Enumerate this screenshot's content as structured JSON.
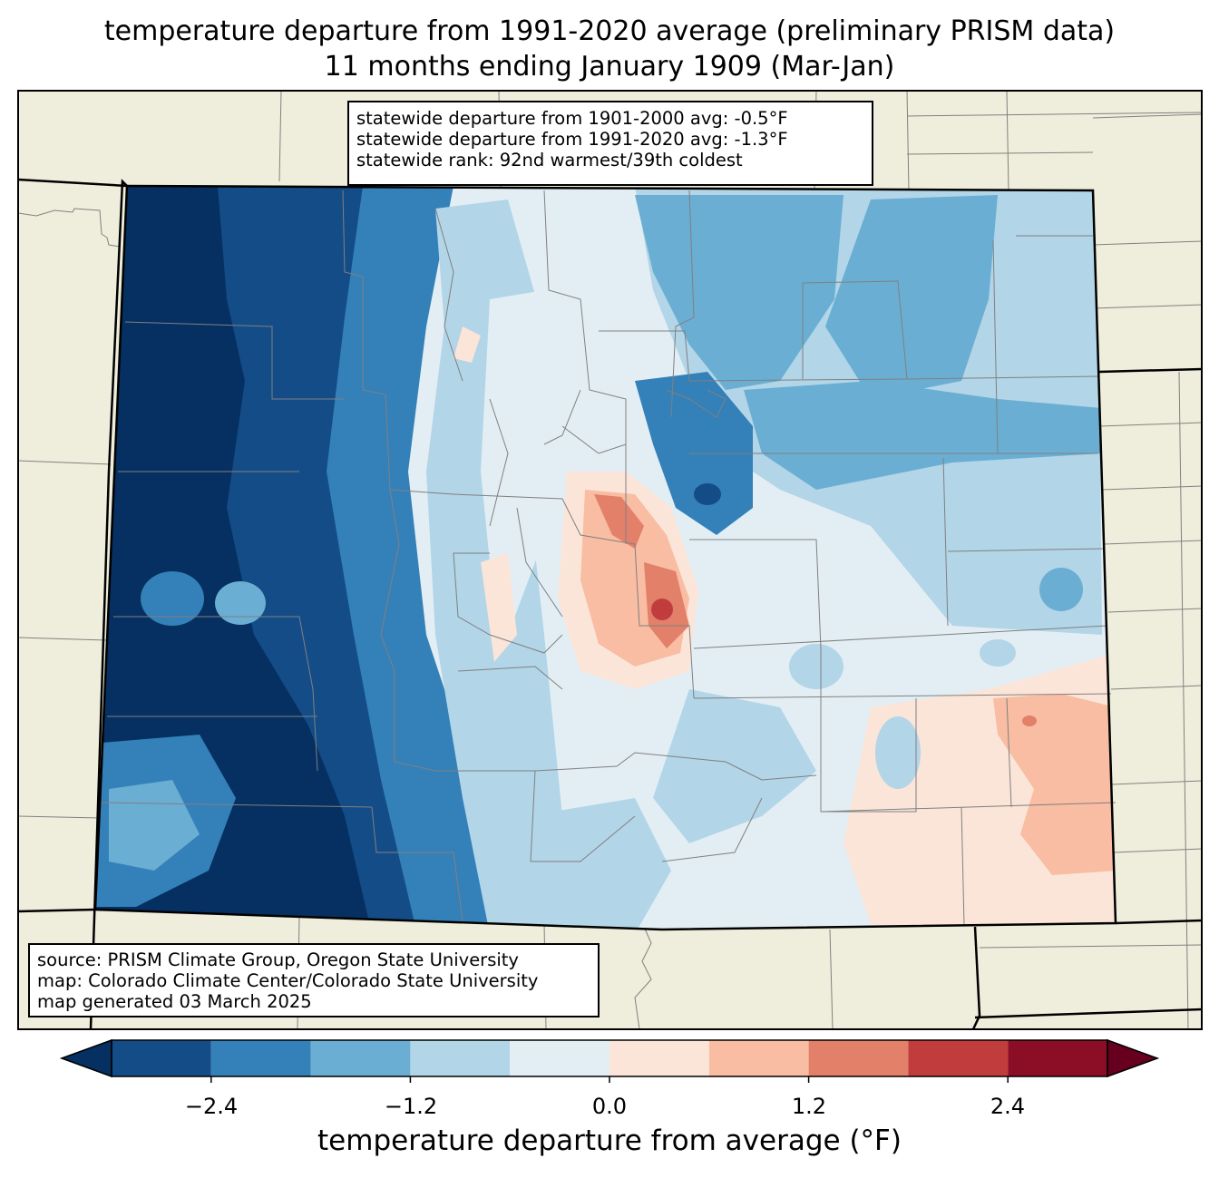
{
  "title": {
    "line1": "temperature departure from 1991-2020 average (preliminary PRISM data)",
    "line2": "11 months ending January 1909 (Mar-Jan)"
  },
  "stats": {
    "line1": "statewide departure from 1901-2000 avg: -0.5°F",
    "line2": "statewide departure from 1991-2020 avg: -1.3°F",
    "line3": "statewide rank: 92nd warmest/39th coldest"
  },
  "source": {
    "line1": "source: PRISM Climate Group, Oregon State University",
    "line2": "map: Colorado Climate Center/Colorado State University",
    "line3": "map generated 03 March 2025"
  },
  "colorbar": {
    "label": "temperature departure from average (°F)",
    "ticks": [
      "−2.4",
      "−1.2",
      "0.0",
      "1.2",
      "2.4"
    ],
    "tick_values": [
      -2.4,
      -1.2,
      0.0,
      1.2,
      2.4
    ],
    "bins": [
      -3.0,
      -2.4,
      -1.8,
      -1.2,
      -0.6,
      0.0,
      0.6,
      1.2,
      1.8,
      2.4,
      3.0
    ],
    "colors": [
      "#053061",
      "#144c87",
      "#3480b9",
      "#6aaed3",
      "#b2d5e8",
      "#e3eef4",
      "#fbe5d8",
      "#f8bda2",
      "#e3806a",
      "#c13d3d",
      "#8b0d26",
      "#67001f"
    ]
  },
  "map_colors": {
    "land": "#efeedc",
    "state_border": "#000000",
    "county_border": "#808080"
  }
}
